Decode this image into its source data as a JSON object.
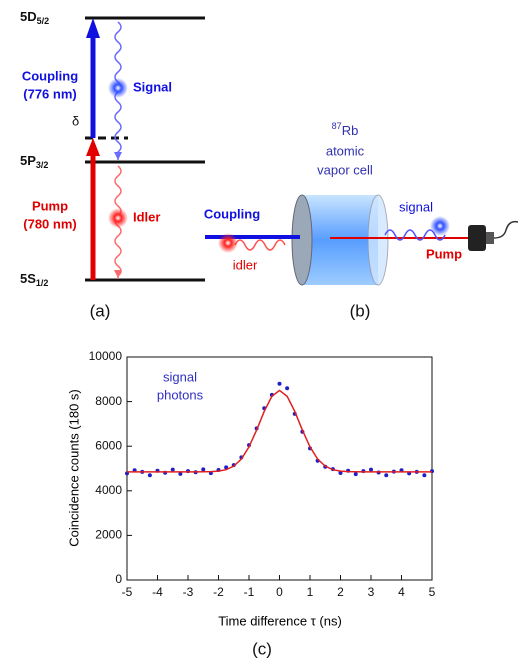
{
  "panel_a": {
    "label": "(a)",
    "levels": [
      {
        "main": "5D",
        "sub": "5/2"
      },
      {
        "main": "5P",
        "sub": "3/2"
      },
      {
        "main": "5S",
        "sub": "1/2"
      }
    ],
    "coupling": [
      "Coupling",
      "(776 nm)"
    ],
    "pump": [
      "Pump",
      "(780 nm)"
    ],
    "detuning": "δ",
    "signal": "Signal",
    "idler": "Idler"
  },
  "panel_b": {
    "label": "(b)",
    "isotope_mass": "87",
    "element": "Rb",
    "cell": [
      "atomic",
      "vapor cell"
    ],
    "coupling": "Coupling",
    "idler": "idler",
    "signal": "signal",
    "pump": "Pump"
  },
  "chart_data": {
    "type": "scatter",
    "label": "(c)",
    "x_label": "Time difference τ (ns)",
    "y_label": "Coincidence counts (180 s)",
    "annotation": [
      "signal",
      "photons"
    ],
    "x": [
      -5,
      -4.75,
      -4.5,
      -4.25,
      -4,
      -3.75,
      -3.5,
      -3.25,
      -3,
      -2.75,
      -2.5,
      -2.25,
      -2,
      -1.75,
      -1.5,
      -1.25,
      -1,
      -0.75,
      -0.5,
      -0.25,
      0,
      0.25,
      0.5,
      0.75,
      1,
      1.25,
      1.5,
      1.75,
      2,
      2.25,
      2.5,
      2.75,
      3,
      3.25,
      3.5,
      3.75,
      4,
      4.25,
      4.5,
      4.75,
      5
    ],
    "series": [
      {
        "color": "#1f1fc8",
        "values": [
          4780,
          4920,
          4850,
          4700,
          4900,
          4810,
          4950,
          4760,
          4880,
          4830,
          4960,
          4790,
          4930,
          5050,
          5150,
          5500,
          6050,
          6800,
          7700,
          8300,
          8800,
          8600,
          7450,
          6650,
          5900,
          5350,
          5080,
          4970,
          4800,
          4900,
          4750,
          4880,
          4950,
          4820,
          4700,
          4860,
          4920,
          4780,
          4850,
          4700,
          4880
        ]
      },
      {
        "type": "line",
        "color": "#e02020",
        "values": [
          4850,
          4850,
          4850,
          4850,
          4850,
          4850,
          4850,
          4850,
          4850,
          4851,
          4853,
          4860,
          4882,
          4947,
          5105,
          5424,
          5968,
          6725,
          7565,
          8240,
          8500,
          8240,
          7565,
          6725,
          5968,
          5424,
          5105,
          4947,
          4882,
          4860,
          4853,
          4851,
          4850,
          4850,
          4850,
          4850,
          4850,
          4850,
          4850,
          4850,
          4850
        ]
      }
    ],
    "xlim": [
      -5,
      5
    ],
    "ylim": [
      0,
      10000
    ],
    "xticks": [
      -5,
      -4,
      -3,
      -2,
      -1,
      0,
      1,
      2,
      3,
      4,
      5
    ],
    "yticks": [
      0,
      2000,
      4000,
      6000,
      8000,
      10000
    ]
  }
}
